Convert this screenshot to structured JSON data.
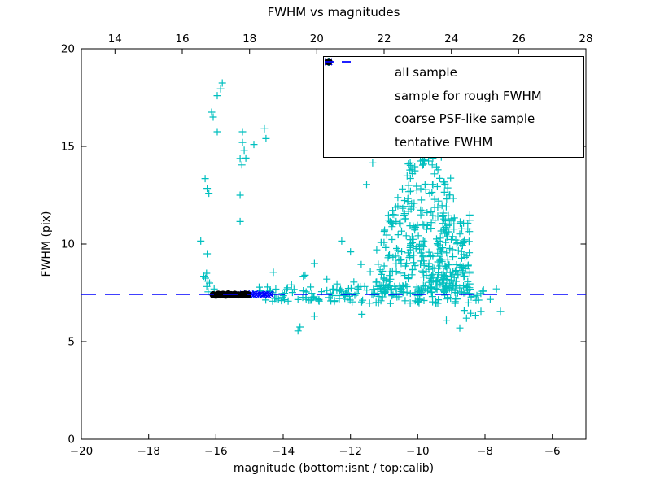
{
  "title": "FWHM vs magnitudes",
  "axes": {
    "xlabel": "magnitude (bottom:isnt / top:calib)",
    "ylabel": "FWHM (pix)",
    "x_bottom": {
      "range": [
        -20,
        -5
      ],
      "ticks": [
        -20,
        -18,
        -16,
        -14,
        -12,
        -10,
        -8,
        -6
      ],
      "tick_labels": [
        "−20",
        "−18",
        "−16",
        "−14",
        "−12",
        "−10",
        "−8",
        "−6"
      ]
    },
    "x_top": {
      "range": [
        13,
        28
      ],
      "ticks": [
        14,
        16,
        18,
        20,
        22,
        24,
        26,
        28
      ],
      "tick_labels": [
        "14",
        "16",
        "18",
        "20",
        "22",
        "24",
        "26",
        "28"
      ]
    },
    "y": {
      "range": [
        0,
        20
      ],
      "ticks": [
        0,
        5,
        10,
        15,
        20
      ],
      "tick_labels": [
        "0",
        "5",
        "10",
        "15",
        "20"
      ]
    }
  },
  "legend": {
    "entries": [
      {
        "label": "all sample",
        "marker": "plus",
        "color": "#00bfbf"
      },
      {
        "label": "sample for rough FWHM",
        "marker": "cross",
        "color": "#0000ff"
      },
      {
        "label": "coarse PSF-like sample",
        "marker": "dot",
        "color": "#000000"
      },
      {
        "label": "tentative FWHM",
        "marker": "dash",
        "color": "#0000ff"
      }
    ]
  },
  "chart_data": {
    "type": "scatter",
    "title": "FWHM vs magnitudes",
    "xlabel": "magnitude (bottom:isnt / top:calib)",
    "ylabel": "FWHM (pix)",
    "x_bottom_range": [
      -20,
      -5
    ],
    "x_top_range": [
      13,
      28
    ],
    "ylim": [
      0,
      20
    ],
    "grid": false,
    "legend_position": "upper right",
    "series": [
      {
        "name": "all sample",
        "marker": "plus",
        "color": "#00bfbf",
        "points": [
          [
            -15.81,
            18.25
          ],
          [
            -15.86,
            17.95
          ],
          [
            -15.96,
            17.6
          ],
          [
            -16.13,
            16.75
          ],
          [
            -16.08,
            16.5
          ],
          [
            -15.96,
            15.75
          ],
          [
            -16.32,
            13.35
          ],
          [
            -16.26,
            12.85
          ],
          [
            -16.21,
            12.6
          ],
          [
            -16.45,
            10.15
          ],
          [
            -16.26,
            9.5
          ],
          [
            -16.28,
            8.5
          ],
          [
            -16.31,
            8.25
          ],
          [
            -16.24,
            8.1
          ],
          [
            -16.19,
            8.0
          ],
          [
            -16.36,
            8.35
          ],
          [
            -15.21,
            15.75
          ],
          [
            -14.56,
            15.9
          ],
          [
            -14.51,
            15.4
          ],
          [
            -15.21,
            15.2
          ],
          [
            -14.87,
            15.1
          ],
          [
            -15.16,
            14.8
          ],
          [
            -15.11,
            14.4
          ],
          [
            -15.28,
            14.38
          ],
          [
            -15.23,
            14.05
          ],
          [
            -15.28,
            12.5
          ],
          [
            -15.28,
            11.15
          ],
          [
            -14.29,
            8.55
          ],
          [
            -12.26,
            10.15
          ],
          [
            -13.35,
            8.4
          ],
          [
            -13.07,
            9.0
          ],
          [
            -11.68,
            8.95
          ],
          [
            -11.9,
            8.05
          ],
          [
            -13.4,
            8.35
          ],
          [
            -11.41,
            8.58
          ],
          [
            -11.24,
            8.04
          ],
          [
            -11.0,
            8.2
          ],
          [
            -11.22,
            9.7
          ],
          [
            -10.88,
            9.3
          ],
          [
            -12.4,
            7.95
          ],
          [
            -12.7,
            8.2
          ],
          [
            -13.75,
            7.9
          ],
          [
            -12.0,
            9.6
          ],
          [
            -11.52,
            13.05
          ],
          [
            -13.56,
            5.55
          ],
          [
            -13.5,
            5.75
          ],
          [
            -13.07,
            6.3
          ],
          [
            -11.66,
            6.4
          ],
          [
            -8.75,
            5.7
          ],
          [
            -8.55,
            6.2
          ],
          [
            -8.42,
            6.45
          ],
          [
            -8.62,
            6.6
          ],
          [
            -8.28,
            6.35
          ],
          [
            -8.12,
            6.55
          ],
          [
            -7.54,
            6.55
          ],
          [
            -9.15,
            6.1
          ],
          [
            -10.28,
            14.1
          ],
          [
            -9.92,
            14.25
          ],
          [
            -9.8,
            14.3
          ],
          [
            -9.68,
            14.25
          ],
          [
            -9.44,
            13.95
          ],
          [
            -9.4,
            13.8
          ],
          [
            -9.55,
            14.4
          ],
          [
            -9.3,
            14.45
          ],
          [
            -10.16,
            13.6
          ],
          [
            -11.34,
            14.15
          ]
        ],
        "dense_clusters": [
          {
            "count": 12,
            "mag_min": -10.3,
            "mag_max": -9.3,
            "fwhm_min": 13.5,
            "fwhm_max": 14.35
          },
          {
            "count": 18,
            "mag_min": -10.55,
            "mag_max": -9.0,
            "fwhm_min": 12.7,
            "fwhm_max": 13.5
          },
          {
            "count": 24,
            "mag_min": -10.7,
            "mag_max": -8.9,
            "fwhm_min": 11.9,
            "fwhm_max": 12.7
          },
          {
            "count": 30,
            "mag_min": -10.9,
            "mag_max": -8.75,
            "fwhm_min": 11.1,
            "fwhm_max": 11.9
          },
          {
            "count": 36,
            "mag_min": -11.0,
            "mag_max": -8.7,
            "fwhm_min": 10.3,
            "fwhm_max": 11.1
          },
          {
            "count": 42,
            "mag_min": -11.1,
            "mag_max": -8.6,
            "fwhm_min": 9.5,
            "fwhm_max": 10.3
          },
          {
            "count": 50,
            "mag_min": -11.2,
            "mag_max": -8.5,
            "fwhm_min": 8.7,
            "fwhm_max": 9.5
          },
          {
            "count": 58,
            "mag_min": -11.28,
            "mag_max": -8.45,
            "fwhm_min": 7.9,
            "fwhm_max": 8.7
          },
          {
            "count": 60,
            "mag_min": -11.35,
            "mag_max": -8.4,
            "fwhm_min": 7.5,
            "fwhm_max": 7.9
          },
          {
            "count": 70,
            "mag_min": -9.45,
            "mag_max": -8.45,
            "fwhm_min": 7.6,
            "fwhm_max": 11.5
          },
          {
            "count": 70,
            "mag_min": -14.95,
            "mag_max": -12.0,
            "fwhm_min": 7.05,
            "fwhm_max": 7.8
          },
          {
            "count": 85,
            "mag_min": -12.0,
            "mag_max": -8.35,
            "fwhm_min": 6.95,
            "fwhm_max": 7.85
          },
          {
            "count": 10,
            "mag_min": -8.35,
            "mag_max": -7.6,
            "fwhm_min": 7.1,
            "fwhm_max": 7.7
          },
          {
            "count": 3,
            "mag_min": -16.35,
            "mag_max": -16.05,
            "fwhm_min": 7.55,
            "fwhm_max": 7.95
          }
        ]
      },
      {
        "name": "sample for rough FWHM",
        "marker": "cross",
        "color": "#0000ff",
        "points": [
          [
            -15.32,
            7.4
          ],
          [
            -15.28,
            7.44
          ],
          [
            -15.24,
            7.38
          ],
          [
            -15.2,
            7.46
          ],
          [
            -15.16,
            7.42
          ],
          [
            -15.12,
            7.36
          ],
          [
            -15.08,
            7.48
          ],
          [
            -15.04,
            7.41
          ],
          [
            -15.0,
            7.39
          ],
          [
            -14.96,
            7.45
          ],
          [
            -14.92,
            7.43
          ],
          [
            -14.88,
            7.37
          ],
          [
            -14.84,
            7.47
          ],
          [
            -14.8,
            7.4
          ],
          [
            -14.76,
            7.44
          ],
          [
            -14.72,
            7.38
          ],
          [
            -14.68,
            7.42
          ],
          [
            -14.64,
            7.46
          ],
          [
            -14.6,
            7.39
          ],
          [
            -14.56,
            7.43
          ],
          [
            -14.52,
            7.41
          ],
          [
            -14.48,
            7.45
          ],
          [
            -14.44,
            7.37
          ],
          [
            -14.4,
            7.44
          ],
          [
            -14.36,
            7.4
          ]
        ]
      },
      {
        "name": "coarse PSF-like sample",
        "marker": "dot",
        "color": "#000000",
        "points": [
          [
            -16.08,
            7.4
          ],
          [
            -16.0,
            7.38
          ],
          [
            -15.93,
            7.43
          ],
          [
            -15.86,
            7.39
          ],
          [
            -15.79,
            7.42
          ],
          [
            -15.71,
            7.38
          ],
          [
            -15.63,
            7.44
          ],
          [
            -15.54,
            7.4
          ],
          [
            -15.44,
            7.42
          ],
          [
            -15.33,
            7.39
          ],
          [
            -15.22,
            7.41
          ],
          [
            -15.12,
            7.43
          ],
          [
            -15.05,
            7.4
          ]
        ]
      }
    ],
    "tentative_fwhm": {
      "name": "tentative FWHM",
      "value": 7.42,
      "style": "dashed",
      "color": "#0000ff"
    }
  }
}
